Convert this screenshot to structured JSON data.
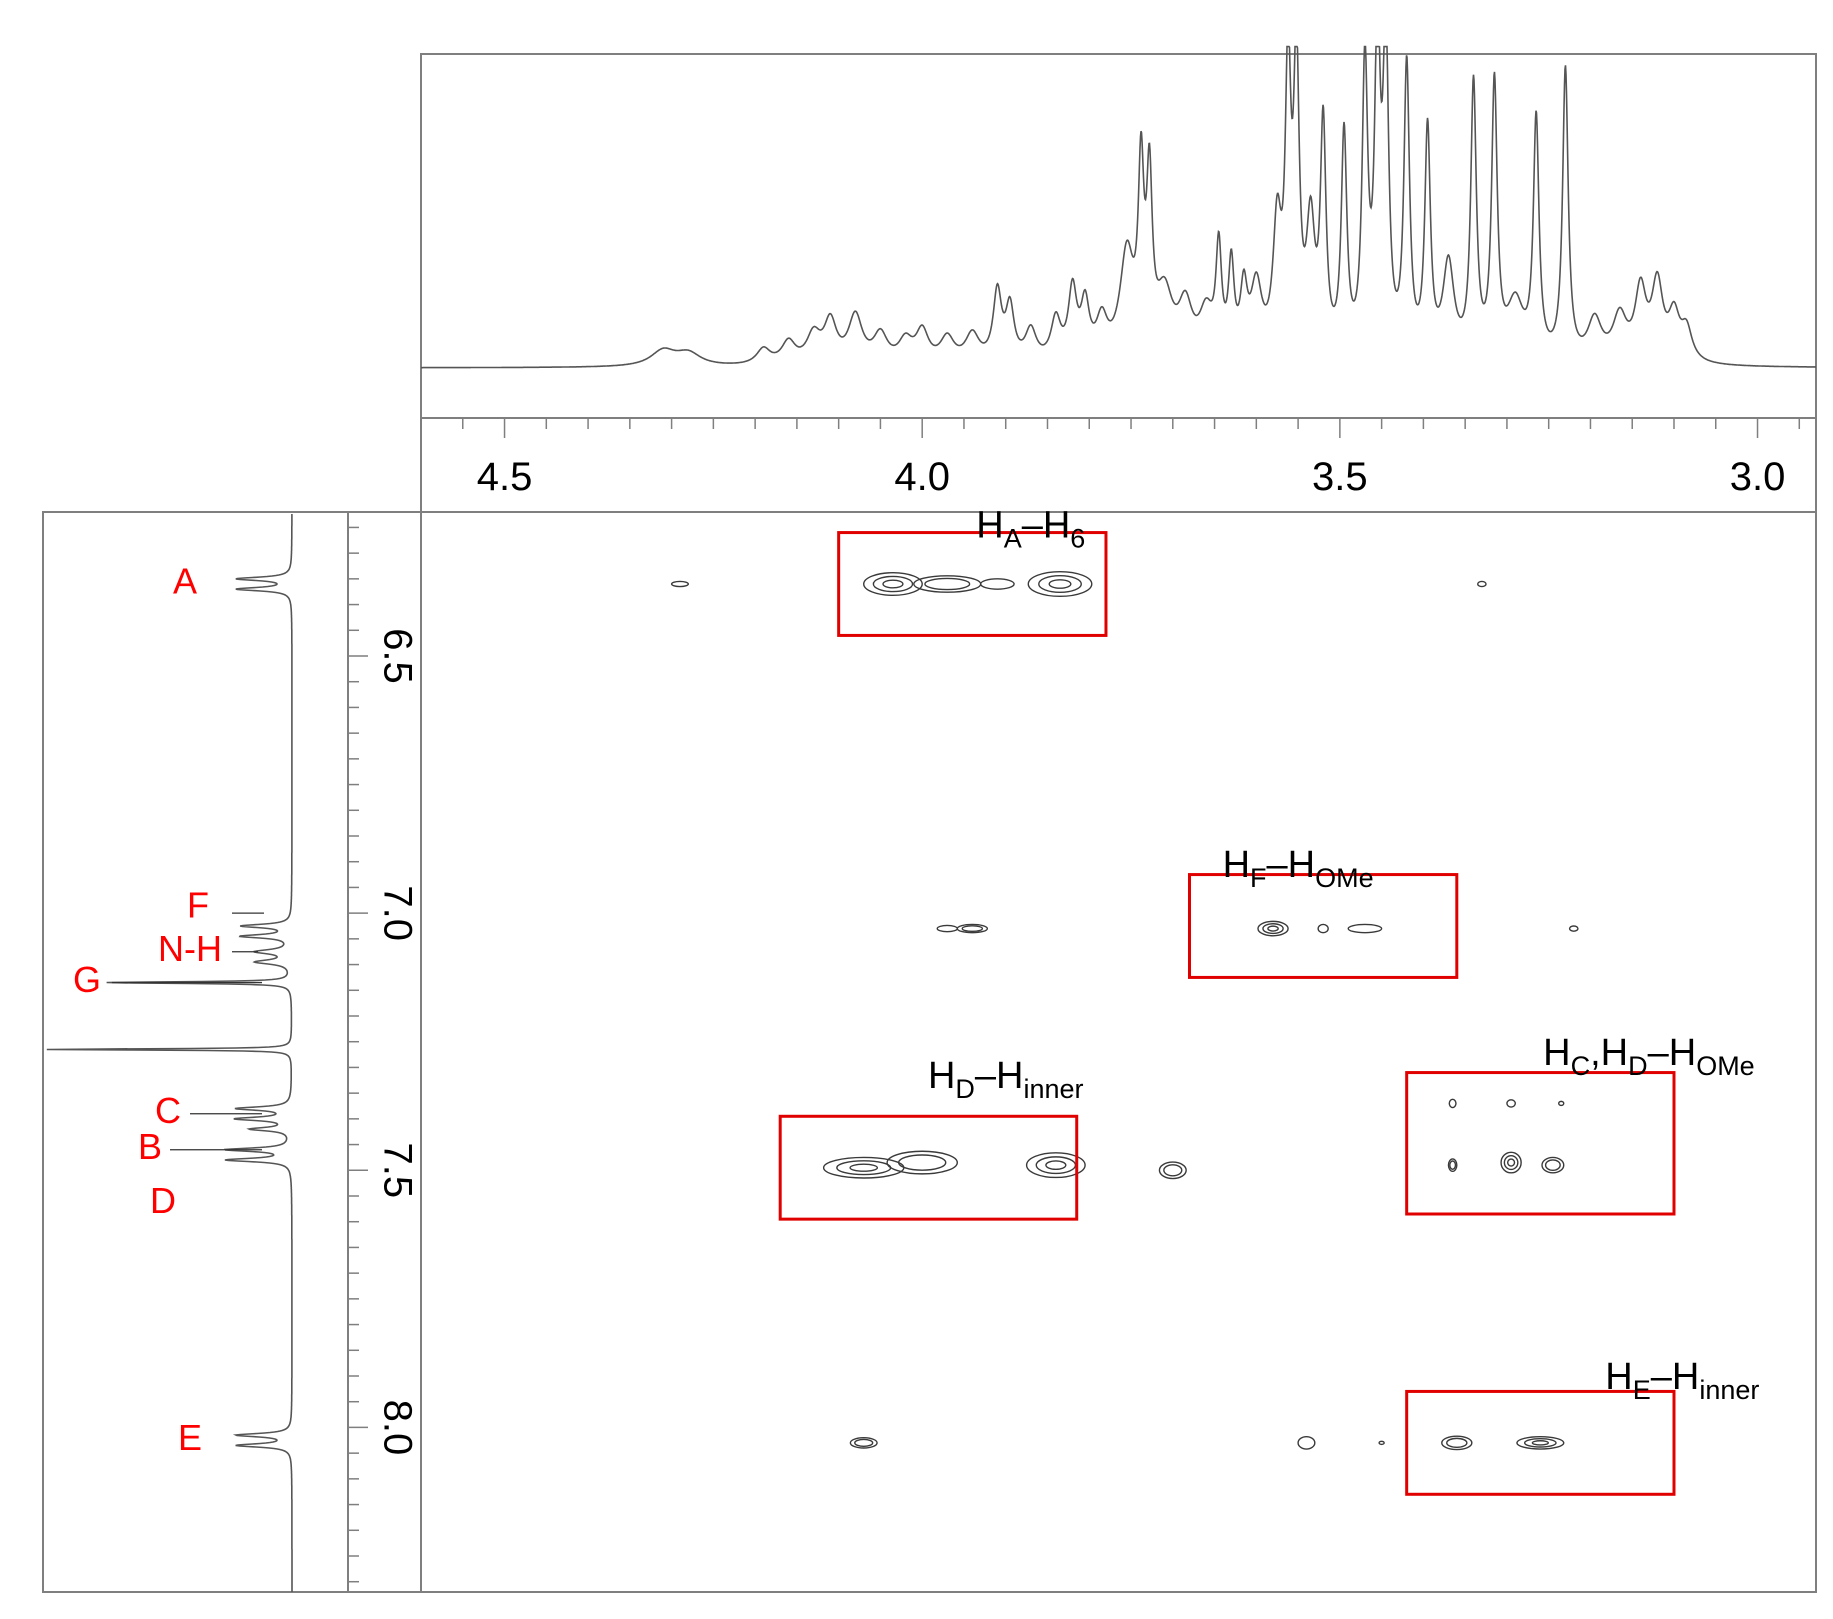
{
  "chart_data": {
    "type": "heatmap",
    "subtype": "2D NMR contour plot with 1D projections",
    "title": "",
    "xlabel": "",
    "ylabel": "",
    "x_axis": {
      "position": "top",
      "reversed": true,
      "range": [
        4.6,
        2.93
      ],
      "major_ticks": [
        4.5,
        4.0,
        3.5,
        3.0
      ],
      "tick_labels": [
        "4.5",
        "4.0",
        "3.5",
        "3.0"
      ],
      "minor_step": 0.05
    },
    "y_axis": {
      "position": "left",
      "range": [
        6.22,
        8.32
      ],
      "major_ticks": [
        6.5,
        7.0,
        7.5,
        8.0
      ],
      "tick_labels": [
        "6.5",
        "7.0",
        "7.5",
        "8.0"
      ],
      "minor_step": 0.05
    },
    "top_spectrum": {
      "baseline": 0.0,
      "peaks": [
        {
          "x": 4.31,
          "h": 0.05,
          "w": 0.018
        },
        {
          "x": 4.28,
          "h": 0.04,
          "w": 0.018
        },
        {
          "x": 4.19,
          "h": 0.05,
          "w": 0.01
        },
        {
          "x": 4.16,
          "h": 0.07,
          "w": 0.01
        },
        {
          "x": 4.13,
          "h": 0.09,
          "w": 0.01
        },
        {
          "x": 4.11,
          "h": 0.13,
          "w": 0.009
        },
        {
          "x": 4.08,
          "h": 0.15,
          "w": 0.01
        },
        {
          "x": 4.05,
          "h": 0.09,
          "w": 0.01
        },
        {
          "x": 4.02,
          "h": 0.07,
          "w": 0.01
        },
        {
          "x": 4.0,
          "h": 0.1,
          "w": 0.009
        },
        {
          "x": 3.97,
          "h": 0.08,
          "w": 0.01
        },
        {
          "x": 3.94,
          "h": 0.09,
          "w": 0.01
        },
        {
          "x": 3.91,
          "h": 0.22,
          "w": 0.006
        },
        {
          "x": 3.895,
          "h": 0.17,
          "w": 0.006
        },
        {
          "x": 3.87,
          "h": 0.1,
          "w": 0.008
        },
        {
          "x": 3.84,
          "h": 0.13,
          "w": 0.007
        },
        {
          "x": 3.82,
          "h": 0.22,
          "w": 0.006
        },
        {
          "x": 3.805,
          "h": 0.17,
          "w": 0.006
        },
        {
          "x": 3.785,
          "h": 0.12,
          "w": 0.008
        },
        {
          "x": 3.755,
          "h": 0.33,
          "w": 0.01
        },
        {
          "x": 3.738,
          "h": 0.55,
          "w": 0.004
        },
        {
          "x": 3.728,
          "h": 0.52,
          "w": 0.004
        },
        {
          "x": 3.71,
          "h": 0.2,
          "w": 0.012
        },
        {
          "x": 3.685,
          "h": 0.16,
          "w": 0.01
        },
        {
          "x": 3.66,
          "h": 0.14,
          "w": 0.01
        },
        {
          "x": 3.645,
          "h": 0.33,
          "w": 0.004
        },
        {
          "x": 3.63,
          "h": 0.28,
          "w": 0.004
        },
        {
          "x": 3.615,
          "h": 0.2,
          "w": 0.005
        },
        {
          "x": 3.6,
          "h": 0.22,
          "w": 0.008
        },
        {
          "x": 3.575,
          "h": 0.4,
          "w": 0.006
        },
        {
          "x": 3.562,
          "h": 0.88,
          "w": 0.004
        },
        {
          "x": 3.552,
          "h": 0.9,
          "w": 0.004
        },
        {
          "x": 3.535,
          "h": 0.4,
          "w": 0.006
        },
        {
          "x": 3.52,
          "h": 0.72,
          "w": 0.004
        },
        {
          "x": 3.495,
          "h": 0.7,
          "w": 0.004
        },
        {
          "x": 3.47,
          "h": 0.92,
          "w": 0.004
        },
        {
          "x": 3.455,
          "h": 1.0,
          "w": 0.004
        },
        {
          "x": 3.445,
          "h": 0.98,
          "w": 0.004
        },
        {
          "x": 3.42,
          "h": 0.92,
          "w": 0.004
        },
        {
          "x": 3.395,
          "h": 0.72,
          "w": 0.004
        },
        {
          "x": 3.37,
          "h": 0.3,
          "w": 0.008
        },
        {
          "x": 3.34,
          "h": 0.87,
          "w": 0.004
        },
        {
          "x": 3.315,
          "h": 0.87,
          "w": 0.004
        },
        {
          "x": 3.29,
          "h": 0.18,
          "w": 0.012
        },
        {
          "x": 3.265,
          "h": 0.76,
          "w": 0.004
        },
        {
          "x": 3.23,
          "h": 0.93,
          "w": 0.004
        },
        {
          "x": 3.195,
          "h": 0.13,
          "w": 0.01
        },
        {
          "x": 3.165,
          "h": 0.14,
          "w": 0.01
        },
        {
          "x": 3.14,
          "h": 0.22,
          "w": 0.008
        },
        {
          "x": 3.12,
          "h": 0.24,
          "w": 0.008
        },
        {
          "x": 3.1,
          "h": 0.14,
          "w": 0.008
        },
        {
          "x": 3.085,
          "h": 0.1,
          "w": 0.008
        }
      ]
    },
    "left_spectrum": {
      "peaks": [
        {
          "y": 6.35,
          "h": 0.22,
          "w": 0.004
        },
        {
          "y": 6.37,
          "h": 0.22,
          "w": 0.004
        },
        {
          "y": 7.025,
          "h": 0.2,
          "w": 0.004
        },
        {
          "y": 7.045,
          "h": 0.2,
          "w": 0.004
        },
        {
          "y": 7.075,
          "h": 0.14,
          "w": 0.005
        },
        {
          "y": 7.095,
          "h": 0.14,
          "w": 0.005
        },
        {
          "y": 7.135,
          "h": 0.75,
          "w": 0.002
        },
        {
          "y": 7.265,
          "h": 1.0,
          "w": 0.0015
        },
        {
          "y": 7.38,
          "h": 0.22,
          "w": 0.004
        },
        {
          "y": 7.4,
          "h": 0.22,
          "w": 0.004
        },
        {
          "y": 7.42,
          "h": 0.16,
          "w": 0.004
        },
        {
          "y": 7.46,
          "h": 0.26,
          "w": 0.004
        },
        {
          "y": 7.48,
          "h": 0.26,
          "w": 0.004
        },
        {
          "y": 8.015,
          "h": 0.22,
          "w": 0.004
        },
        {
          "y": 8.035,
          "h": 0.22,
          "w": 0.004
        }
      ],
      "labels": [
        {
          "text": "A",
          "y": 6.36
        },
        {
          "text": "F",
          "y": 7.0
        },
        {
          "text": "N-H",
          "y": 7.075
        },
        {
          "text": "G",
          "y": 7.135
        },
        {
          "text": "C",
          "y": 7.39
        },
        {
          "text": "B",
          "y": 7.46
        },
        {
          "text": "D",
          "y": 7.53
        },
        {
          "text": "E",
          "y": 8.025
        }
      ]
    },
    "contours": [
      {
        "x": 4.29,
        "y": 6.36,
        "rx": 0.01,
        "ry": 0.005,
        "levels": 1
      },
      {
        "x": 4.035,
        "y": 6.36,
        "rx": 0.035,
        "ry": 0.022,
        "levels": 3
      },
      {
        "x": 3.97,
        "y": 6.36,
        "rx": 0.04,
        "ry": 0.016,
        "levels": 2
      },
      {
        "x": 3.91,
        "y": 6.36,
        "rx": 0.02,
        "ry": 0.01,
        "levels": 1
      },
      {
        "x": 3.835,
        "y": 6.36,
        "rx": 0.038,
        "ry": 0.024,
        "levels": 3
      },
      {
        "x": 3.33,
        "y": 6.36,
        "rx": 0.005,
        "ry": 0.005,
        "levels": 1
      },
      {
        "x": 3.97,
        "y": 7.03,
        "rx": 0.012,
        "ry": 0.006,
        "levels": 1
      },
      {
        "x": 3.94,
        "y": 7.03,
        "rx": 0.018,
        "ry": 0.008,
        "levels": 2
      },
      {
        "x": 3.58,
        "y": 7.03,
        "rx": 0.018,
        "ry": 0.014,
        "levels": 3
      },
      {
        "x": 3.52,
        "y": 7.03,
        "rx": 0.006,
        "ry": 0.008,
        "levels": 1
      },
      {
        "x": 3.47,
        "y": 7.03,
        "rx": 0.02,
        "ry": 0.008,
        "levels": 1
      },
      {
        "x": 3.22,
        "y": 7.03,
        "rx": 0.005,
        "ry": 0.005,
        "levels": 1
      },
      {
        "x": 4.07,
        "y": 7.495,
        "rx": 0.048,
        "ry": 0.02,
        "levels": 3
      },
      {
        "x": 4.0,
        "y": 7.485,
        "rx": 0.042,
        "ry": 0.022,
        "levels": 2
      },
      {
        "x": 3.84,
        "y": 7.49,
        "rx": 0.035,
        "ry": 0.024,
        "levels": 3
      },
      {
        "x": 3.7,
        "y": 7.5,
        "rx": 0.016,
        "ry": 0.016,
        "levels": 2
      },
      {
        "x": 3.365,
        "y": 7.37,
        "rx": 0.004,
        "ry": 0.008,
        "levels": 1
      },
      {
        "x": 3.295,
        "y": 7.37,
        "rx": 0.005,
        "ry": 0.007,
        "levels": 1
      },
      {
        "x": 3.235,
        "y": 7.37,
        "rx": 0.003,
        "ry": 0.004,
        "levels": 1
      },
      {
        "x": 3.365,
        "y": 7.49,
        "rx": 0.005,
        "ry": 0.012,
        "levels": 2
      },
      {
        "x": 3.295,
        "y": 7.485,
        "rx": 0.012,
        "ry": 0.02,
        "levels": 3
      },
      {
        "x": 3.245,
        "y": 7.49,
        "rx": 0.013,
        "ry": 0.015,
        "levels": 2
      },
      {
        "x": 4.07,
        "y": 8.03,
        "rx": 0.016,
        "ry": 0.01,
        "levels": 2
      },
      {
        "x": 3.54,
        "y": 8.03,
        "rx": 0.01,
        "ry": 0.012,
        "levels": 1
      },
      {
        "x": 3.45,
        "y": 8.03,
        "rx": 0.003,
        "ry": 0.003,
        "levels": 1
      },
      {
        "x": 3.36,
        "y": 8.03,
        "rx": 0.018,
        "ry": 0.013,
        "levels": 2
      },
      {
        "x": 3.26,
        "y": 8.03,
        "rx": 0.028,
        "ry": 0.012,
        "levels": 3
      }
    ],
    "annotations": [
      {
        "main": "H",
        "parts": [
          [
            "H",
            ""
          ],
          [
            "A",
            "sub"
          ],
          [
            "–H",
            ""
          ],
          [
            "6",
            "sub"
          ]
        ],
        "x": 3.87,
        "y": 6.27,
        "box": {
          "x1": 4.1,
          "x2": 3.78,
          "y1": 6.26,
          "y2": 6.46
        }
      },
      {
        "main": "H",
        "parts": [
          [
            "H",
            ""
          ],
          [
            "F",
            "sub"
          ],
          [
            "–H",
            ""
          ],
          [
            "OMe",
            "sub"
          ]
        ],
        "x": 3.55,
        "y": 6.93,
        "box": {
          "x1": 3.68,
          "x2": 3.36,
          "y1": 6.925,
          "y2": 7.125
        }
      },
      {
        "main": "H",
        "parts": [
          [
            "H",
            ""
          ],
          [
            "D",
            "sub"
          ],
          [
            "–H",
            ""
          ],
          [
            "inner",
            "sub"
          ]
        ],
        "x": 3.9,
        "y": 7.34,
        "box": {
          "x1": 4.17,
          "x2": 3.815,
          "y1": 7.395,
          "y2": 7.595
        }
      },
      {
        "main": "H",
        "parts": [
          [
            "H",
            ""
          ],
          [
            "C",
            "sub"
          ],
          [
            ",H",
            ""
          ],
          [
            "D",
            "sub"
          ],
          [
            "–H",
            ""
          ],
          [
            "OMe",
            "sub"
          ]
        ],
        "x": 3.13,
        "y": 7.295,
        "box": {
          "x1": 3.42,
          "x2": 3.1,
          "y1": 7.31,
          "y2": 7.585
        }
      },
      {
        "main": "H",
        "parts": [
          [
            "H",
            ""
          ],
          [
            "E",
            "sub"
          ],
          [
            "–H",
            ""
          ],
          [
            "inner",
            "sub"
          ]
        ],
        "x": 3.09,
        "y": 7.925,
        "box": {
          "x1": 3.42,
          "x2": 3.1,
          "y1": 7.93,
          "y2": 8.13
        }
      }
    ],
    "colors": {
      "axis": "#7f7f7f",
      "trace": "#555555",
      "contour": "#3a3a3a",
      "box": "#e00000",
      "label": "#ff0000"
    },
    "grid": false,
    "legend": "none"
  }
}
